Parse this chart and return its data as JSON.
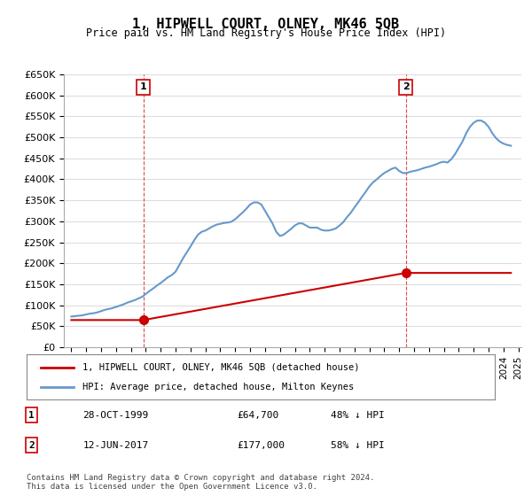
{
  "title": "1, HIPWELL COURT, OLNEY, MK46 5QB",
  "subtitle": "Price paid vs. HM Land Registry's House Price Index (HPI)",
  "legend_label_red": "1, HIPWELL COURT, OLNEY, MK46 5QB (detached house)",
  "legend_label_blue": "HPI: Average price, detached house, Milton Keynes",
  "sale1_label": "1",
  "sale1_date": "28-OCT-1999",
  "sale1_price": "£64,700",
  "sale1_hpi": "48% ↓ HPI",
  "sale1_year": 1999.83,
  "sale1_value": 64700,
  "sale2_label": "2",
  "sale2_date": "12-JUN-2017",
  "sale2_price": "£177,000",
  "sale2_hpi": "58% ↓ HPI",
  "sale2_year": 2017.44,
  "sale2_value": 177000,
  "footer": "Contains HM Land Registry data © Crown copyright and database right 2024.\nThis data is licensed under the Open Government Licence v3.0.",
  "ylim": [
    0,
    650000
  ],
  "yticks": [
    0,
    50000,
    100000,
    150000,
    200000,
    250000,
    300000,
    350000,
    400000,
    450000,
    500000,
    550000,
    600000,
    650000
  ],
  "ytick_labels": [
    "£0",
    "£50K",
    "£100K",
    "£150K",
    "£200K",
    "£250K",
    "£300K",
    "£350K",
    "£400K",
    "£450K",
    "£500K",
    "£550K",
    "£600K",
    "£650K"
  ],
  "red_color": "#cc0000",
  "blue_color": "#6699cc",
  "marker_color_red": "#cc0000",
  "bg_color": "#ffffff",
  "grid_color": "#dddddd",
  "hpi_years": [
    1995,
    1995.25,
    1995.5,
    1995.75,
    1996,
    1996.25,
    1996.5,
    1996.75,
    1997,
    1997.25,
    1997.5,
    1997.75,
    1998,
    1998.25,
    1998.5,
    1998.75,
    1999,
    1999.25,
    1999.5,
    1999.75,
    2000,
    2000.25,
    2000.5,
    2000.75,
    2001,
    2001.25,
    2001.5,
    2001.75,
    2002,
    2002.25,
    2002.5,
    2002.75,
    2003,
    2003.25,
    2003.5,
    2003.75,
    2004,
    2004.25,
    2004.5,
    2004.75,
    2005,
    2005.25,
    2005.5,
    2005.75,
    2006,
    2006.25,
    2006.5,
    2006.75,
    2007,
    2007.25,
    2007.5,
    2007.75,
    2008,
    2008.25,
    2008.5,
    2008.75,
    2009,
    2009.25,
    2009.5,
    2009.75,
    2010,
    2010.25,
    2010.5,
    2010.75,
    2011,
    2011.25,
    2011.5,
    2011.75,
    2012,
    2012.25,
    2012.5,
    2012.75,
    2013,
    2013.25,
    2013.5,
    2013.75,
    2014,
    2014.25,
    2014.5,
    2014.75,
    2015,
    2015.25,
    2015.5,
    2015.75,
    2016,
    2016.25,
    2016.5,
    2016.75,
    2017,
    2017.25,
    2017.5,
    2017.75,
    2018,
    2018.25,
    2018.5,
    2018.75,
    2019,
    2019.25,
    2019.5,
    2019.75,
    2020,
    2020.25,
    2020.5,
    2020.75,
    2021,
    2021.25,
    2021.5,
    2021.75,
    2022,
    2022.25,
    2022.5,
    2022.75,
    2023,
    2023.25,
    2023.5,
    2023.75,
    2024,
    2024.25,
    2024.5
  ],
  "hpi_values": [
    73000,
    74000,
    75000,
    76000,
    78000,
    80000,
    81000,
    83000,
    86000,
    89000,
    91000,
    93000,
    96000,
    99000,
    102000,
    106000,
    109000,
    112000,
    116000,
    120000,
    127000,
    134000,
    140000,
    147000,
    153000,
    160000,
    167000,
    172000,
    180000,
    196000,
    212000,
    226000,
    240000,
    255000,
    268000,
    275000,
    278000,
    283000,
    288000,
    292000,
    294000,
    296000,
    297000,
    299000,
    305000,
    313000,
    321000,
    330000,
    340000,
    345000,
    345000,
    340000,
    325000,
    310000,
    295000,
    275000,
    265000,
    268000,
    275000,
    282000,
    290000,
    295000,
    295000,
    290000,
    285000,
    285000,
    285000,
    280000,
    278000,
    278000,
    280000,
    283000,
    290000,
    298000,
    310000,
    320000,
    333000,
    345000,
    358000,
    370000,
    383000,
    393000,
    400000,
    408000,
    415000,
    420000,
    425000,
    428000,
    420000,
    415000,
    415000,
    418000,
    420000,
    422000,
    425000,
    428000,
    430000,
    433000,
    436000,
    440000,
    442000,
    440000,
    448000,
    460000,
    475000,
    490000,
    510000,
    525000,
    535000,
    540000,
    540000,
    535000,
    525000,
    510000,
    498000,
    490000,
    485000,
    482000,
    480000
  ],
  "red_years": [
    1995,
    1999.83,
    2017.44,
    2024.5
  ],
  "red_values": [
    64700,
    64700,
    177000,
    177000
  ],
  "xmin": 1994.5,
  "xmax": 2025.2
}
